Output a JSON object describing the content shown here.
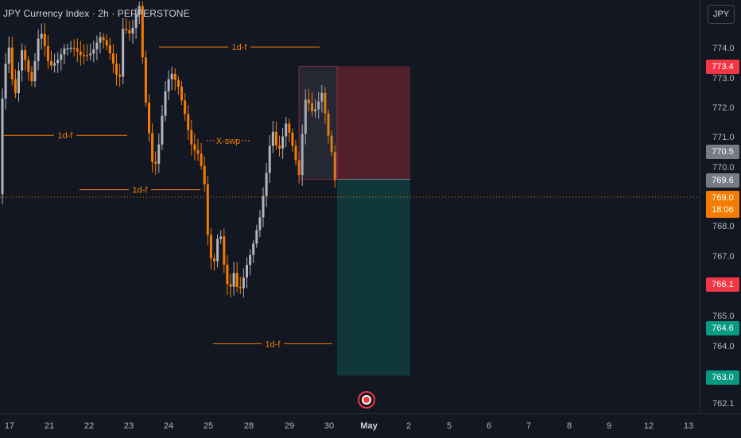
{
  "header": {
    "symbol_title": "JPY Currency Index · 2h · PEPPERSTONE"
  },
  "price_axis": {
    "currency_button": "JPY",
    "ticks": [
      "774.0",
      "773.0",
      "772.0",
      "771.0",
      "770.0",
      "768.0",
      "767.0",
      "765.0",
      "764.0",
      "762.1"
    ],
    "badges": {
      "stop_loss": "773.4",
      "price_770_5": "770.5",
      "entry": "769.6",
      "target_1": "766.1",
      "target_2": "764.6",
      "target_3": "763.0"
    },
    "current_price": {
      "value": "769.0",
      "countdown": "18:06"
    }
  },
  "time_axis": {
    "labels": [
      "17",
      "21",
      "22",
      "23",
      "24",
      "25",
      "28",
      "29",
      "30",
      "May",
      "2",
      "5",
      "6",
      "7",
      "8",
      "9",
      "12",
      "13"
    ]
  },
  "annotations": {
    "level_1": "1d-f",
    "level_2": "1d-f",
    "level_3": "1d-f",
    "level_4": "1d-f",
    "sweep": "X-swp"
  },
  "colors": {
    "background": "#131722",
    "bull_candle": "#b2b5be",
    "bear_candle": "#f57c00",
    "stop_zone": "#f23645",
    "target_zone": "#089981",
    "current_price": "#f57c00"
  }
}
